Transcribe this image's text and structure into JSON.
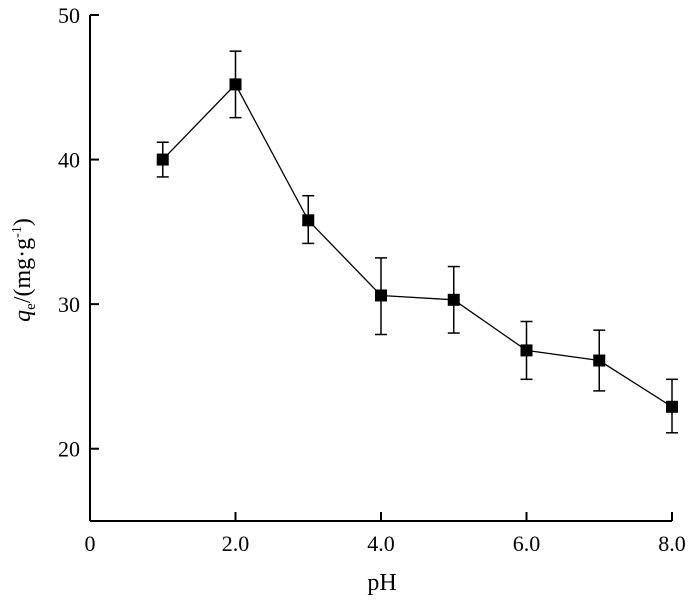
{
  "chart_data": {
    "type": "line",
    "xlabel": "pH",
    "ylabel": {
      "symbol": "q",
      "subscript": "e",
      "unit_prefix": "/(mg·g",
      "unit_sup": "-1",
      "unit_suffix": ")"
    },
    "xlim": [
      0,
      8
    ],
    "ylim": [
      15,
      50
    ],
    "x_ticks": [
      0,
      2,
      4,
      6,
      8
    ],
    "x_tick_labels": [
      "0",
      "2.0",
      "4.0",
      "6.0",
      "8.0"
    ],
    "y_ticks": [
      20,
      30,
      40,
      50
    ],
    "y_tick_labels": [
      "20",
      "30",
      "40",
      "50"
    ],
    "marker": "square",
    "grid": false,
    "series": [
      {
        "x": [
          1,
          2,
          3,
          4,
          5,
          6,
          7,
          8
        ],
        "y": [
          40.0,
          45.2,
          35.8,
          30.6,
          30.3,
          26.8,
          26.1,
          22.9
        ],
        "err_low": [
          1.2,
          2.3,
          1.6,
          2.7,
          2.3,
          2.0,
          2.1,
          1.8
        ],
        "err_high": [
          1.2,
          2.3,
          1.7,
          2.6,
          2.3,
          2.0,
          2.1,
          1.9
        ]
      }
    ],
    "color": "#000000"
  }
}
